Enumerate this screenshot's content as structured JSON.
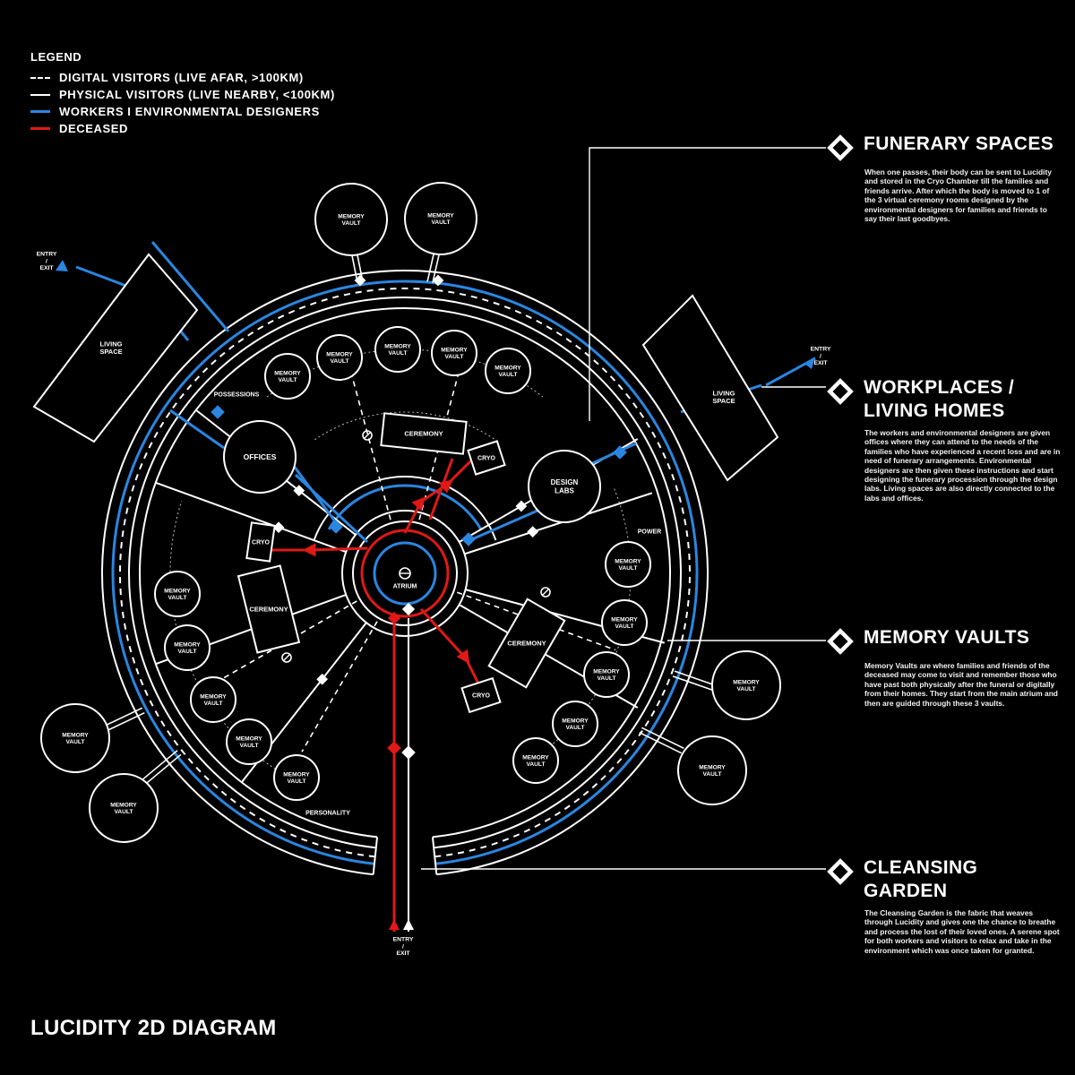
{
  "legend": {
    "title": "LEGEND",
    "items": [
      {
        "label": "DIGITAL VISITORS (LIVE AFAR, >100KM)",
        "style": "dashed"
      },
      {
        "label": "PHYSICAL VISITORS (LIVE NEARBY, <100KM)",
        "style": "solid"
      },
      {
        "label": "WORKERS I ENVIRONMENTAL DESIGNERS",
        "style": "blue"
      },
      {
        "label": "DECEASED",
        "style": "red"
      }
    ]
  },
  "colors": {
    "background": "#000000",
    "line": "#ffffff",
    "workers": "#2a86e0",
    "deceased": "#e01818"
  },
  "panels": [
    {
      "title": "FUNERARY SPACES",
      "icon": "diamond-ring-icon",
      "body": "When one passes, their body can be sent to Lucidity and stored in the Cryo Chamber till the families and friends arrive. After which the body is moved to 1 of the 3 virtual ceremony rooms designed by the environmental designers for families and friends to say their last goodbyes."
    },
    {
      "title": "WORKPLACES /\nLIVING HOMES",
      "icon": "diamond-ring-icon",
      "body": "The workers and environmental designers are given offices where they can attend to the needs of the families who have experienced a recent loss and are in need of funerary arrangements. Environmental designers are then given these instructions and start designing the funerary procession through the design labs. Living spaces are also directly connected to the labs and offices."
    },
    {
      "title": "MEMORY VAULTS",
      "icon": "diamond-ring-icon",
      "body": "Memory Vaults are where families and friends of the deceased may come to visit and remember those who have past both physically after the funeral or digitally from their homes. They start from the main atrium and then are guided through these 3 vaults."
    },
    {
      "title": "CLEANSING\nGARDEN",
      "icon": "diamond-ring-icon",
      "body": "The Cleansing Garden is the fabric that weaves through Lucidity and gives one the chance to breathe and process the lost of their loved ones. A serene spot for both workers and visitors to relax and take in the environment which was once taken for granted."
    }
  ],
  "labels": {
    "memory_vault": "MEMORY VAULT",
    "ceremony": "CEREMONY",
    "cryo": "CRYO",
    "atrium": "ATRIUM",
    "offices": "OFFICES",
    "design_labs": "DESIGN LABS",
    "living_space": "LIVING SPACE",
    "entry_exit": "ENTRY / EXIT",
    "possessions": "POSSESSIONS",
    "power": "POWER",
    "personality": "PERSONALITY"
  },
  "diagram_title": "LUCIDITY 2D DIAGRAM"
}
